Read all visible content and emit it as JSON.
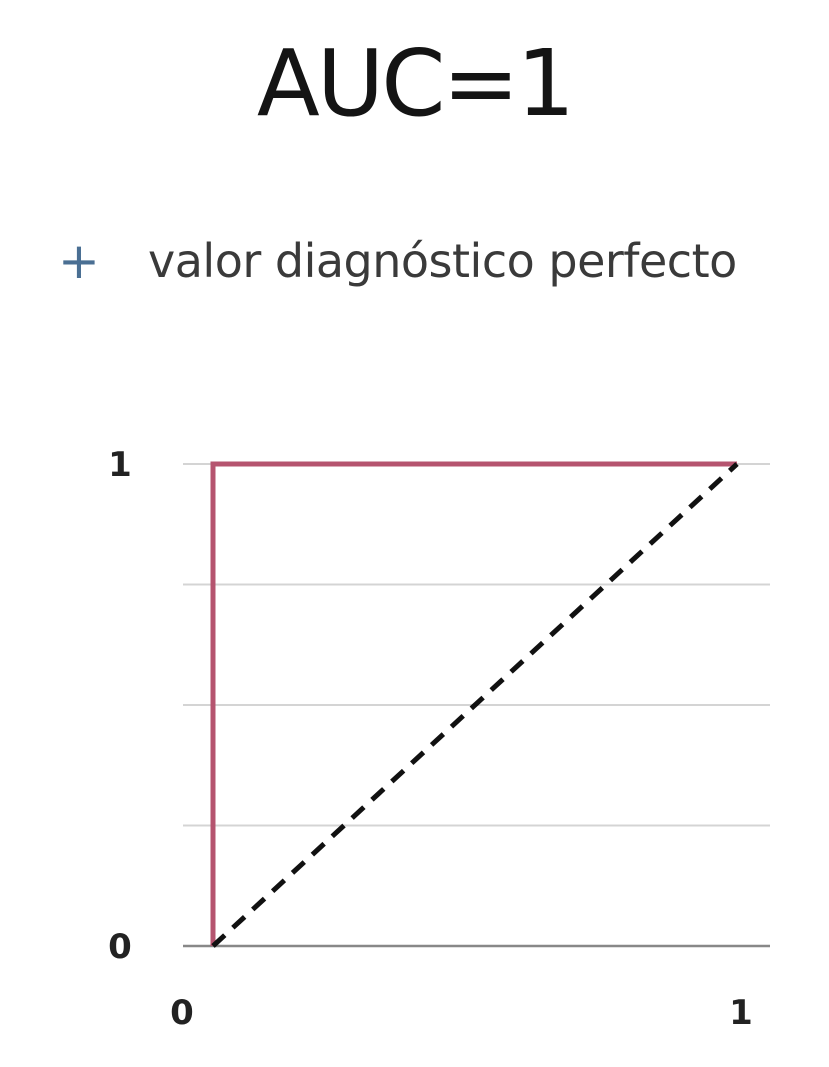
{
  "title": "AUC=1",
  "bullet": {
    "icon": "plus-icon",
    "text": "valor diagnóstico perfecto"
  },
  "chart_data": {
    "type": "line",
    "xlim": [
      0,
      1
    ],
    "ylim": [
      0,
      1
    ],
    "x_ticks": [
      "0",
      "1"
    ],
    "y_ticks": [
      "0",
      "1"
    ],
    "grid": "horizontal",
    "gridlines_y": [
      0,
      0.25,
      0.5,
      0.75,
      1
    ],
    "series": [
      {
        "style": "solid",
        "color": "#b5546f",
        "points": [
          [
            0,
            0
          ],
          [
            0,
            1
          ],
          [
            1,
            1
          ]
        ]
      },
      {
        "style": "dashed",
        "color": "#111111",
        "points": [
          [
            0,
            0
          ],
          [
            1,
            1
          ]
        ]
      }
    ]
  }
}
